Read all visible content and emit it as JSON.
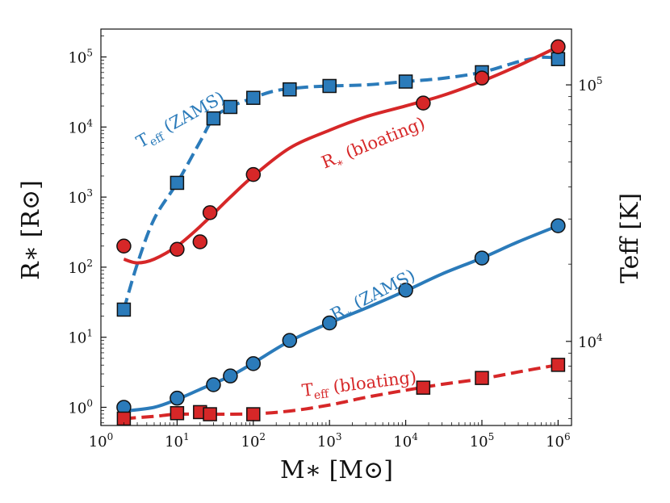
{
  "chart_data": {
    "type": "line",
    "x_axis": {
      "label": "M_* [M_⊙]",
      "label_text": "M∗  [M⊙]",
      "scale": "log",
      "range": [
        1,
        1500000
      ],
      "ticks": [
        1,
        10,
        100,
        1000,
        10000,
        100000,
        1000000
      ],
      "tick_labels": [
        "10^0",
        "10^1",
        "10^2",
        "10^3",
        "10^4",
        "10^5",
        "10^6"
      ]
    },
    "y_axis_left": {
      "label": "R_* [R_⊙]",
      "label_text": "R∗  [R⊙]",
      "scale": "log",
      "range": [
        0.55,
        250000
      ],
      "ticks": [
        1,
        10,
        100,
        1000,
        10000,
        100000
      ],
      "tick_labels": [
        "10^0",
        "10^1",
        "10^2",
        "10^3",
        "10^4",
        "10^5"
      ]
    },
    "y_axis_right": {
      "label": "T_eff [K]",
      "label_text": "Teff  [K]",
      "scale": "log",
      "range": [
        4700,
        165000
      ],
      "ticks": [
        10000,
        100000
      ],
      "tick_labels": [
        "10^4",
        "10^5"
      ]
    },
    "series": [
      {
        "name": "T_eff (ZAMS)",
        "axis": "right",
        "color": "#2b7bba",
        "line_style": "dashed",
        "marker": "square",
        "points": [
          [
            2,
            13300
          ],
          [
            10,
            41500
          ],
          [
            30,
            74000
          ],
          [
            50,
            82000
          ],
          [
            100,
            89000
          ],
          [
            300,
            96000
          ],
          [
            1000,
            99000
          ],
          [
            10000,
            103000
          ],
          [
            100000,
            112000
          ],
          [
            1000000,
            126000
          ]
        ],
        "curve": [
          [
            2,
            13300
          ],
          [
            3,
            20000
          ],
          [
            5,
            30000
          ],
          [
            10,
            41500
          ],
          [
            20,
            60000
          ],
          [
            30,
            74000
          ],
          [
            50,
            82000
          ],
          [
            100,
            89000
          ],
          [
            200,
            95000
          ],
          [
            500,
            98000
          ],
          [
            1000,
            99000
          ],
          [
            3000,
            100000
          ],
          [
            10000,
            103000
          ],
          [
            30000,
            106000
          ],
          [
            100000,
            112000
          ],
          [
            300000,
            123000
          ],
          [
            600000,
            128000
          ],
          [
            1000000,
            127000
          ]
        ]
      },
      {
        "name": "R_* (bloating)",
        "axis": "left",
        "color": "#d62728",
        "line_style": "solid",
        "marker": "circle",
        "points": [
          [
            2,
            200
          ],
          [
            10,
            180
          ],
          [
            20,
            230
          ],
          [
            27,
            600
          ],
          [
            100,
            2100
          ],
          [
            17000,
            22000
          ],
          [
            100000,
            50000
          ],
          [
            1000000,
            140000
          ]
        ],
        "curve": [
          [
            2,
            130
          ],
          [
            3,
            115
          ],
          [
            5,
            130
          ],
          [
            10,
            200
          ],
          [
            20,
            380
          ],
          [
            50,
            1000
          ],
          [
            100,
            2000
          ],
          [
            300,
            5000
          ],
          [
            1000,
            9000
          ],
          [
            3000,
            14000
          ],
          [
            10000,
            20000
          ],
          [
            30000,
            28000
          ],
          [
            100000,
            45000
          ],
          [
            300000,
            75000
          ],
          [
            1000000,
            140000
          ]
        ]
      },
      {
        "name": "R_* (ZAMS)",
        "axis": "left",
        "color": "#2b7bba",
        "line_style": "solid",
        "marker": "circle",
        "points": [
          [
            2,
            1.0
          ],
          [
            10,
            1.35
          ],
          [
            30,
            2.1
          ],
          [
            50,
            2.8
          ],
          [
            100,
            4.2
          ],
          [
            300,
            9
          ],
          [
            1000,
            16
          ],
          [
            10000,
            47
          ],
          [
            100000,
            135
          ],
          [
            1000000,
            390
          ]
        ],
        "curve": [
          [
            2,
            0.88
          ],
          [
            5,
            1.0
          ],
          [
            10,
            1.3
          ],
          [
            20,
            1.8
          ],
          [
            50,
            2.8
          ],
          [
            100,
            4.3
          ],
          [
            300,
            8.8
          ],
          [
            1000,
            16
          ],
          [
            3000,
            26
          ],
          [
            10000,
            46
          ],
          [
            30000,
            80
          ],
          [
            100000,
            135
          ],
          [
            300000,
            230
          ],
          [
            1000000,
            390
          ]
        ]
      },
      {
        "name": "T_eff (bloating)",
        "axis": "right",
        "color": "#d62728",
        "line_style": "dashed",
        "marker": "square",
        "points": [
          [
            2,
            5000
          ],
          [
            10,
            5250
          ],
          [
            20,
            5300
          ],
          [
            27,
            5200
          ],
          [
            100,
            5200
          ],
          [
            17000,
            6600
          ],
          [
            100000,
            7200
          ],
          [
            1000000,
            8100
          ]
        ],
        "curve": [
          [
            2,
            5000
          ],
          [
            5,
            5100
          ],
          [
            10,
            5200
          ],
          [
            30,
            5200
          ],
          [
            100,
            5220
          ],
          [
            300,
            5350
          ],
          [
            1000,
            5650
          ],
          [
            3000,
            6050
          ],
          [
            10000,
            6450
          ],
          [
            30000,
            6800
          ],
          [
            100000,
            7150
          ],
          [
            300000,
            7600
          ],
          [
            1000000,
            8100
          ]
        ]
      }
    ],
    "annotations": [
      {
        "text": "Teff (ZAMS)",
        "base": "T",
        "sub": "eff",
        "rest": " (ZAMS)",
        "color": "#2b7bba",
        "rotation": -29
      },
      {
        "text": "R∗ (bloating)",
        "base": "R",
        "sub": "∗",
        "rest": " (bloating)",
        "color": "#d62728",
        "rotation": -22
      },
      {
        "text": "R∗ (ZAMS)",
        "base": "R",
        "sub": "∗",
        "rest": " (ZAMS)",
        "color": "#2b7bba",
        "rotation": -27
      },
      {
        "text": "Teff (bloating)",
        "base": "T",
        "sub": "eff",
        "rest": " (bloating)",
        "color": "#d62728",
        "rotation": -7
      }
    ]
  }
}
